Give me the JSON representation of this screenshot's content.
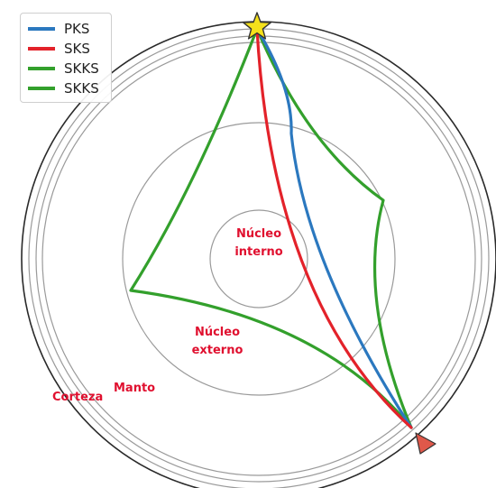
{
  "legend": [
    {
      "label": "PKS",
      "color": "#2b78bf"
    },
    {
      "label": "SKS",
      "color": "#e3222a"
    },
    {
      "label": "SKKS",
      "color": "#33a02c"
    },
    {
      "label": "SKKS",
      "color": "#33a02c"
    }
  ],
  "regions": {
    "inner_core_line1": "Núcleo",
    "inner_core_line2": "interno",
    "outer_core_line1": "Núcleo",
    "outer_core_line2": "externo",
    "mantle": "Manto",
    "crust": "Corteza"
  },
  "colors": {
    "pks": "#2b78bf",
    "sks": "#e3222a",
    "skks": "#33a02c",
    "circle": "#9a9a9a",
    "surface": "#2a2a2a",
    "source_star": "#f5e11a",
    "receiver": "#e0584a",
    "label": "#e0102f"
  },
  "icons": {
    "source": "star-icon",
    "receiver": "triangle-icon"
  }
}
